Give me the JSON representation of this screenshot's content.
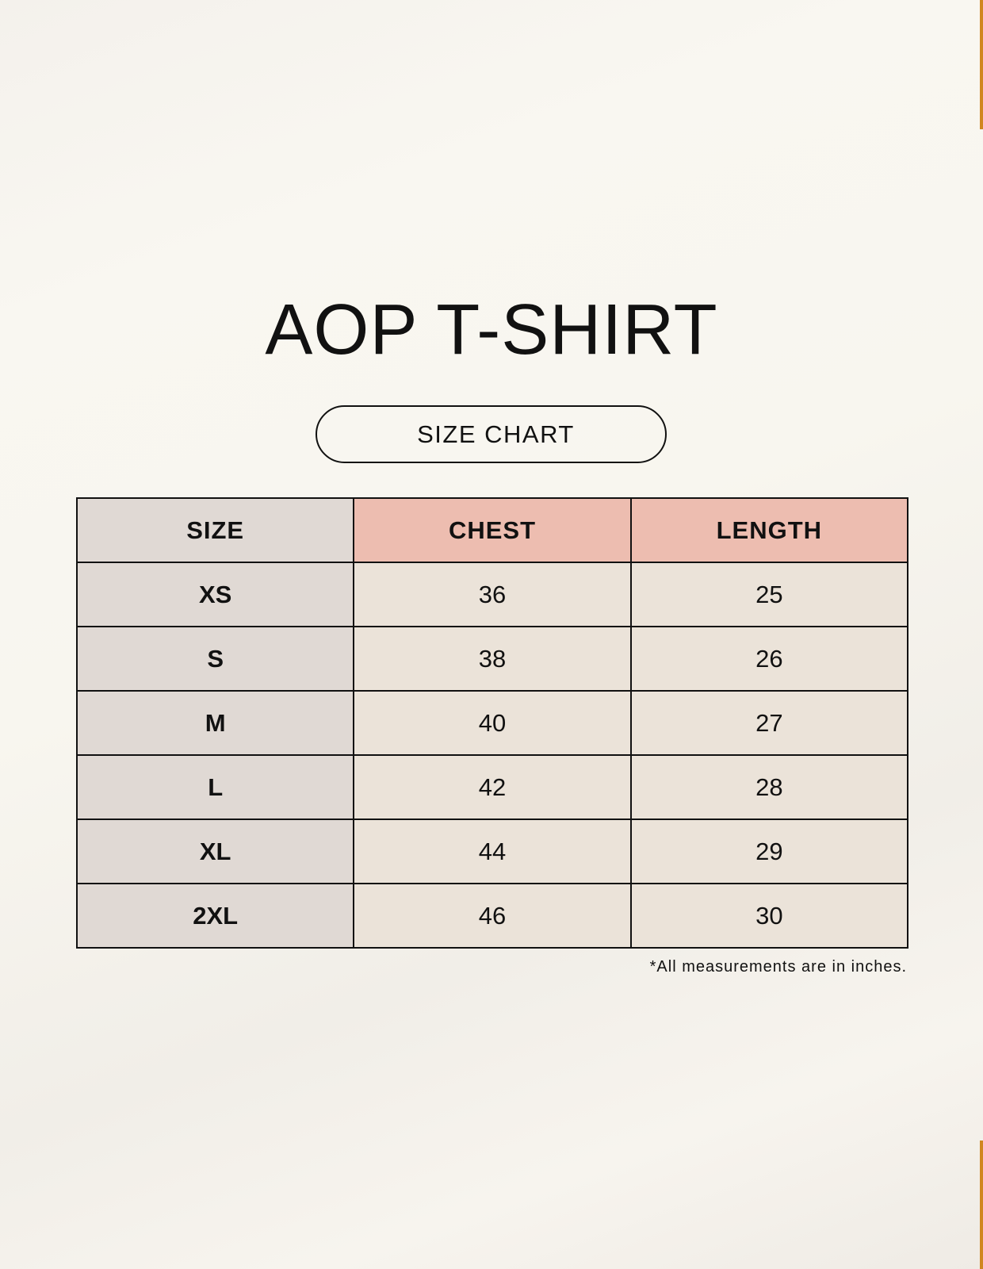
{
  "title": "AOP T-SHIRT",
  "subtitle": "SIZE CHART",
  "table": {
    "headers": [
      "SIZE",
      "CHEST",
      "LENGTH"
    ],
    "rows": [
      [
        "XS",
        "36",
        "25"
      ],
      [
        "S",
        "38",
        "26"
      ],
      [
        "M",
        "40",
        "27"
      ],
      [
        "L",
        "42",
        "28"
      ],
      [
        "XL",
        "44",
        "29"
      ],
      [
        "2XL",
        "46",
        "30"
      ]
    ]
  },
  "note": "*All measurements are in inches.",
  "colors": {
    "accent": "#d08620",
    "header_highlight": "#edbdb0",
    "size_column": "#e0d9d4",
    "cells": "#ebe3d9"
  }
}
